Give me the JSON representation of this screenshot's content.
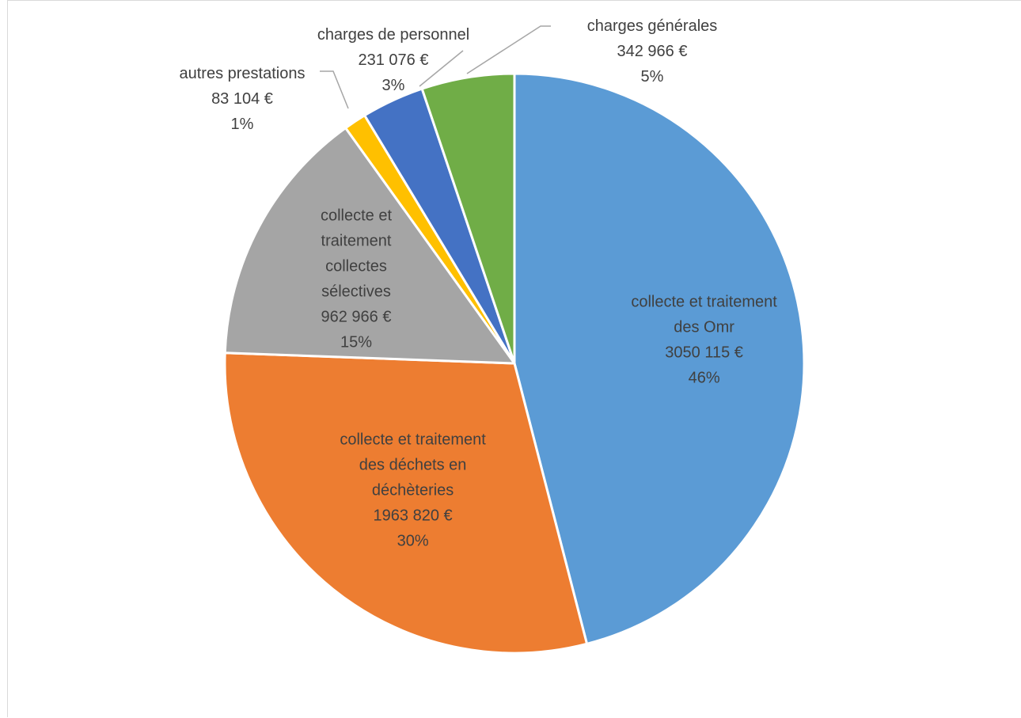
{
  "chart_data": {
    "type": "pie",
    "title": "",
    "slices": [
      {
        "name": "collecte et traitement des Omr",
        "label_lines": [
          "collecte et traitement",
          "des Omr"
        ],
        "value_text": "3050 115 €",
        "value": 3050115,
        "percent_text": "46%",
        "color": "#5b9bd5"
      },
      {
        "name": "collecte et traitement des déchets en déchèteries",
        "label_lines": [
          "collecte et traitement",
          "des déchets en",
          "déchèteries"
        ],
        "value_text": "1963 820 €",
        "value": 1963820,
        "percent_text": "30%",
        "color": "#ed7d31"
      },
      {
        "name": "collecte et traitement collectes sélectives",
        "label_lines": [
          "collecte et",
          "traitement",
          "collectes",
          "sélectives"
        ],
        "value_text": "962 966 €",
        "value": 962966,
        "percent_text": "15%",
        "color": "#a5a5a5"
      },
      {
        "name": "autres prestations",
        "label_lines": [
          "autres prestations"
        ],
        "value_text": "83 104 €",
        "value": 83104,
        "percent_text": "1%",
        "color": "#ffc000"
      },
      {
        "name": "charges de personnel",
        "label_lines": [
          "charges de personnel"
        ],
        "value_text": "231 076 €",
        "value": 231076,
        "percent_text": "3%",
        "color": "#4472c4"
      },
      {
        "name": "charges générales",
        "label_lines": [
          "charges générales"
        ],
        "value_text": "342 966 €",
        "value": 342966,
        "percent_text": "5%",
        "color": "#70ad47"
      }
    ],
    "start": "top",
    "direction": "clockwise",
    "legend": "none"
  }
}
